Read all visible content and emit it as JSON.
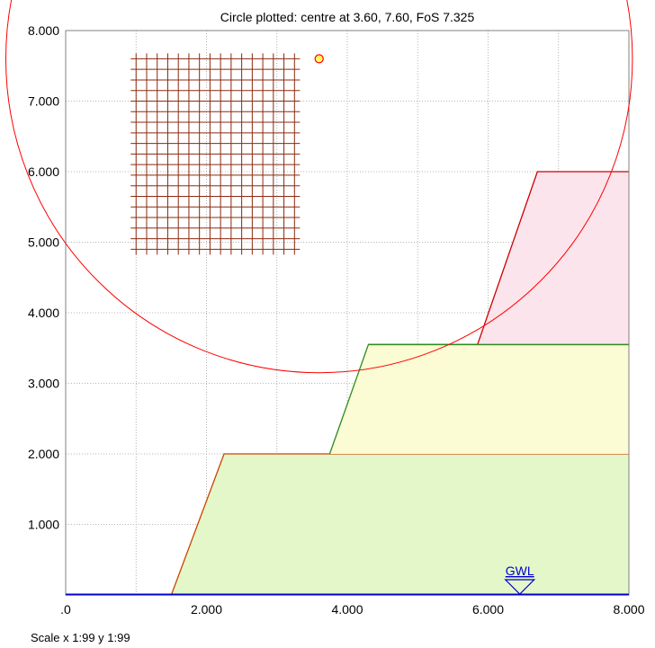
{
  "title": "Circle plotted: centre at  3.60, 7.60, FoS  7.325",
  "scale_text": "Scale x 1:99  y 1:99",
  "colors": {
    "grid": "#a0a0a0",
    "circle": "#ff0000",
    "grid_marker": "#8b2a10",
    "centre_marker": "#e8a000",
    "gwl": "#0000cc",
    "layer1_fill": "#e4f7c8",
    "layer2_fill": "#fbfbd4",
    "layer3_fill": "#fce4ec",
    "layer1_line": "#cc4400",
    "layer2_line": "#2e8b20",
    "layer3_line": "#cc0000"
  },
  "chart_data": {
    "type": "slope-stability",
    "title": "Circle plotted: centre at  3.60, 7.60, FoS  7.325",
    "xlim": [
      0,
      8
    ],
    "ylim": [
      0,
      8
    ],
    "x_ticks": [
      {
        "value": 0,
        "label": ".0"
      },
      {
        "value": 2,
        "label": "2.000"
      },
      {
        "value": 4,
        "label": "4.000"
      },
      {
        "value": 6,
        "label": "6.000"
      },
      {
        "value": 8,
        "label": "8.000"
      }
    ],
    "y_ticks": [
      {
        "value": 1,
        "label": "1.000"
      },
      {
        "value": 2,
        "label": "2.000"
      },
      {
        "value": 3,
        "label": "3.000"
      },
      {
        "value": 4,
        "label": "4.000"
      },
      {
        "value": 5,
        "label": "5.000"
      },
      {
        "value": 6,
        "label": "6.000"
      },
      {
        "value": 7,
        "label": "7.000"
      },
      {
        "value": 8,
        "label": "8.000"
      }
    ],
    "grid": true,
    "layers": [
      {
        "name": "layer-1",
        "points": [
          [
            1.5,
            0
          ],
          [
            2.25,
            2
          ],
          [
            8,
            2
          ],
          [
            8,
            0
          ]
        ]
      },
      {
        "name": "layer-2",
        "points": [
          [
            3.75,
            2
          ],
          [
            4.3,
            3.55
          ],
          [
            8,
            3.55
          ],
          [
            8,
            2
          ]
        ]
      },
      {
        "name": "layer-3",
        "points": [
          [
            5.85,
            3.55
          ],
          [
            6.7,
            6
          ],
          [
            8,
            6
          ],
          [
            8,
            3.55
          ]
        ]
      }
    ],
    "slip_circle": {
      "centre": [
        3.6,
        7.6
      ],
      "radius": 4.45,
      "fos": 7.325
    },
    "centre_grid": {
      "x_start": 1.0,
      "x_step": 0.15,
      "x_count": 16,
      "y_start": 4.9,
      "y_step": 0.15,
      "y_count": 19
    },
    "gwl": {
      "label": "GWL",
      "x": 6.45,
      "level": 0
    }
  }
}
